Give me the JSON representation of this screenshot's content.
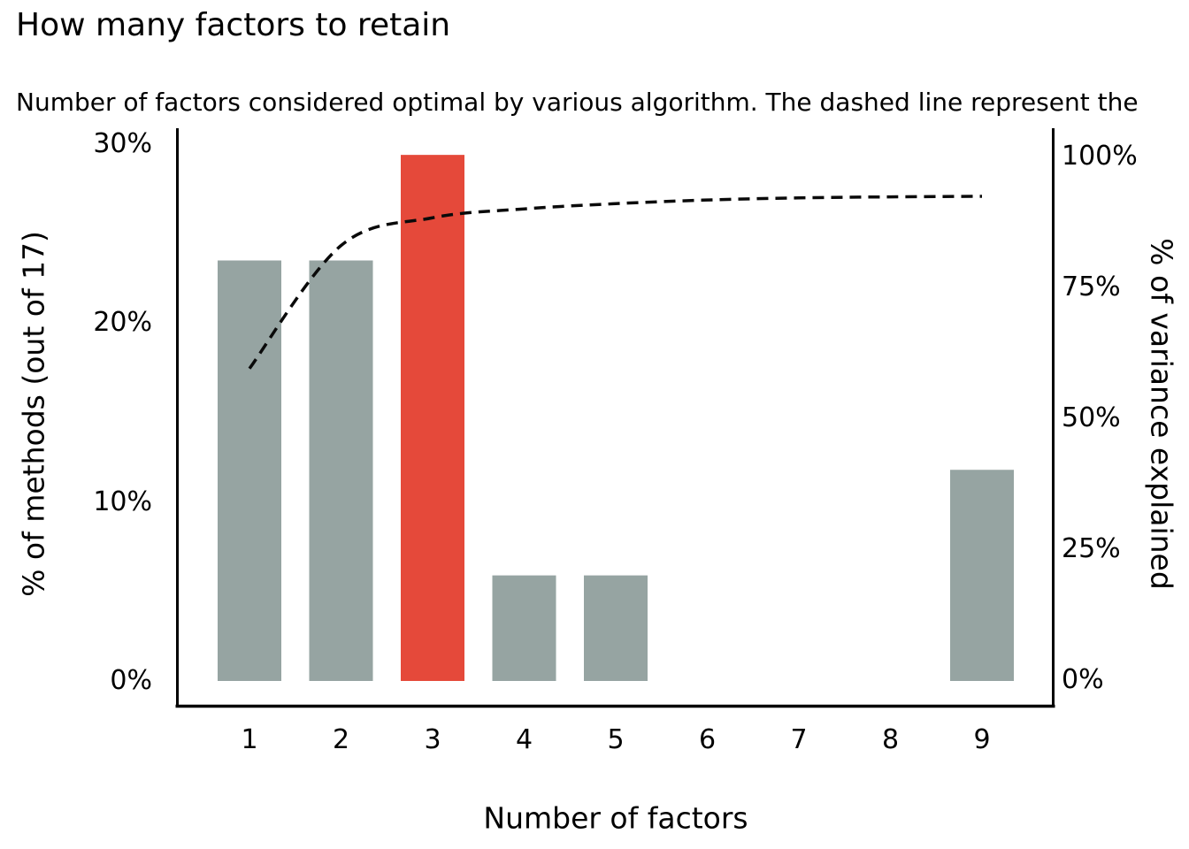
{
  "chart_data": {
    "type": "bar",
    "title": "How many factors to retain",
    "subtitle": "Number of factors considered optimal by various algorithm. The dashed line represent the",
    "xlabel": "Number of factors",
    "ylabel_left": "% of methods (out of 17)",
    "ylabel_right": "% of variance explained",
    "categories": [
      "1",
      "2",
      "3",
      "4",
      "5",
      "6",
      "7",
      "8",
      "9"
    ],
    "series": [
      {
        "name": "% of methods (out of 17)",
        "type": "bar",
        "axis": "left",
        "values": [
          23.5,
          23.5,
          29.4,
          5.9,
          5.9,
          0,
          0,
          0,
          11.8
        ]
      },
      {
        "name": "% of variance explained (cumulative, dashed line)",
        "type": "line",
        "axis": "right",
        "style": "dashed",
        "values": [
          59.5,
          83.0,
          88.3,
          90.0,
          91.0,
          91.7,
          92.1,
          92.3,
          92.4
        ]
      }
    ],
    "highlight_category": "3",
    "left_axis": {
      "tick_labels": [
        "0%",
        "10%",
        "20%",
        "30%"
      ],
      "tick_values": [
        0,
        10,
        20,
        30
      ],
      "range": [
        0,
        31
      ]
    },
    "right_axis": {
      "tick_labels": [
        "0%",
        "25%",
        "50%",
        "75%",
        "100%"
      ],
      "tick_values": [
        0,
        25,
        50,
        75,
        100
      ],
      "range": [
        0,
        105.5
      ]
    },
    "grid": false,
    "legend_position": "none",
    "colors": {
      "bar_default": "#96A4A2",
      "bar_highlight": "#E5493A",
      "line": "#0a0a0a",
      "axis": "#000000",
      "text": "#000000"
    }
  }
}
